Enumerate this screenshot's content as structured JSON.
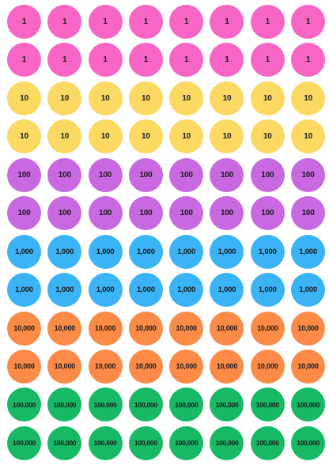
{
  "columns_per_row": 8,
  "rows": [
    {
      "label": "1",
      "color": "#f766c5",
      "size_class": "sz-1"
    },
    {
      "label": "1",
      "color": "#f766c5",
      "size_class": "sz-1"
    },
    {
      "label": "10",
      "color": "#fcd963",
      "size_class": "sz-10"
    },
    {
      "label": "10",
      "color": "#fcd963",
      "size_class": "sz-10"
    },
    {
      "label": "100",
      "color": "#c869e2",
      "size_class": "sz-100"
    },
    {
      "label": "100",
      "color": "#c869e2",
      "size_class": "sz-100"
    },
    {
      "label": "1,000",
      "color": "#3ab3f7",
      "size_class": "sz-1000"
    },
    {
      "label": "1,000",
      "color": "#3ab3f7",
      "size_class": "sz-1000"
    },
    {
      "label": "10,000",
      "color": "#fb8b47",
      "size_class": "sz-10000"
    },
    {
      "label": "10,000",
      "color": "#fb8b47",
      "size_class": "sz-10000"
    },
    {
      "label": "100,000",
      "color": "#18b965",
      "size_class": "sz-100000"
    },
    {
      "label": "100,000",
      "color": "#18b965",
      "size_class": "sz-100000"
    }
  ]
}
